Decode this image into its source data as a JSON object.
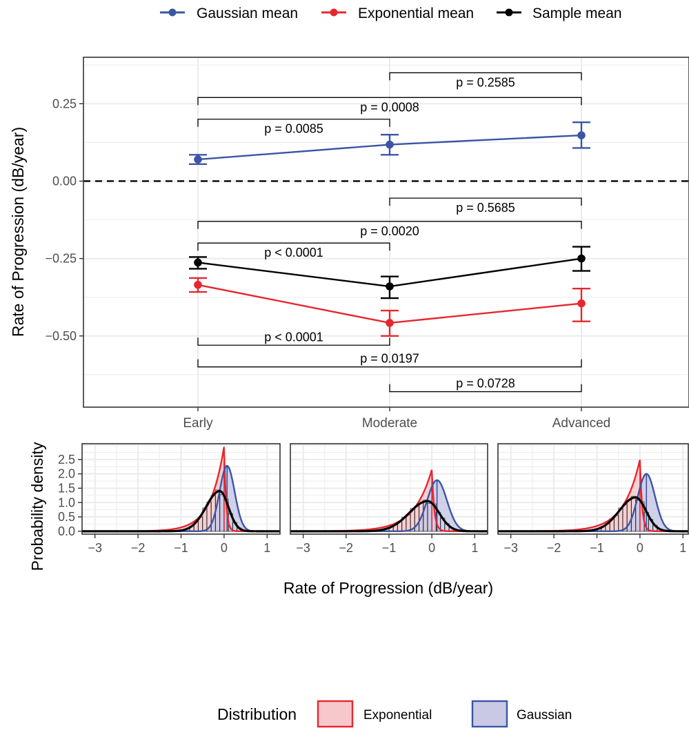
{
  "colors": {
    "gaussian": "#3B55A4",
    "exponential": "#E8262D",
    "sample": "#000000",
    "exp_fill": "#F6C8CB",
    "gauss_fill": "#C9C9E6",
    "grid": "#EBEBEB",
    "axis_text": "#4D4D4D"
  },
  "legend_top": {
    "items": [
      {
        "label": "Gaussian mean",
        "color_key": "gaussian"
      },
      {
        "label": "Exponential mean",
        "color_key": "exponential"
      },
      {
        "label": "Sample mean",
        "color_key": "sample"
      }
    ]
  },
  "legend_bottom": {
    "title": "Distribution",
    "items": [
      {
        "label": "Exponential",
        "color_key": "exponential",
        "fill_key": "exp_fill"
      },
      {
        "label": "Gaussian",
        "color_key": "gaussian",
        "fill_key": "gauss_fill"
      }
    ]
  },
  "chart_data": [
    {
      "type": "line",
      "ylabel": "Rate of Progression (dB/year)",
      "categories": [
        "Early",
        "Moderate",
        "Advanced"
      ],
      "ylim": [
        -0.73,
        0.4
      ],
      "yticks": [
        0.25,
        0.0,
        -0.25,
        -0.5
      ],
      "ytick_labels": [
        "0.25",
        "0.00",
        "−0.25",
        "−0.50"
      ],
      "reference_line": 0.0,
      "grid": true,
      "series": [
        {
          "name": "Gaussian mean",
          "color_key": "gaussian",
          "values": [
            0.07,
            0.118,
            0.148
          ],
          "lower": [
            0.055,
            0.085,
            0.107
          ],
          "upper": [
            0.085,
            0.15,
            0.19
          ]
        },
        {
          "name": "Exponential mean",
          "color_key": "exponential",
          "values": [
            -0.335,
            -0.458,
            -0.395
          ],
          "lower": [
            -0.358,
            -0.5,
            -0.453
          ],
          "upper": [
            -0.313,
            -0.418,
            -0.347
          ]
        },
        {
          "name": "Sample mean",
          "color_key": "sample",
          "values": [
            -0.263,
            -0.34,
            -0.25
          ],
          "lower": [
            -0.283,
            -0.378,
            -0.29
          ],
          "upper": [
            -0.245,
            -0.308,
            -0.212
          ]
        }
      ],
      "annotations": [
        {
          "text": "p = 0.2585",
          "from": 1,
          "to": 2,
          "y": 0.35,
          "ticks": "down",
          "label_side": "below"
        },
        {
          "text": "p = 0.0008",
          "from": 0,
          "to": 2,
          "y": 0.27,
          "ticks": "down",
          "label_side": "below"
        },
        {
          "text": "p = 0.0085",
          "from": 0,
          "to": 1,
          "y": 0.2,
          "ticks": "down",
          "label_side": "below"
        },
        {
          "text": "p = 0.5685",
          "from": 1,
          "to": 2,
          "y": -0.055,
          "ticks": "down",
          "label_side": "below"
        },
        {
          "text": "p = 0.0020",
          "from": 0,
          "to": 2,
          "y": -0.13,
          "ticks": "down",
          "label_side": "below"
        },
        {
          "text": "p < 0.0001",
          "from": 0,
          "to": 1,
          "y": -0.2,
          "ticks": "down",
          "label_side": "below"
        },
        {
          "text": "p < 0.0001",
          "from": 0,
          "to": 1,
          "y": -0.53,
          "ticks": "up",
          "label_side": "above"
        },
        {
          "text": "p = 0.0197",
          "from": 0,
          "to": 2,
          "y": -0.6,
          "ticks": "up",
          "label_side": "above"
        },
        {
          "text": "p = 0.0728",
          "from": 1,
          "to": 2,
          "y": -0.68,
          "ticks": "up",
          "label_side": "above"
        }
      ]
    },
    {
      "type": "histogram_density",
      "xlabel": "Rate of Progression (dB/year)",
      "ylabel": "Probability density",
      "xlim": [
        -3.3,
        1.3
      ],
      "ylim": [
        -0.1,
        3.05
      ],
      "xticks": [
        -3,
        -2,
        -1,
        0,
        1
      ],
      "xtick_labels": [
        "−3",
        "−2",
        "−1",
        "0",
        "1"
      ],
      "yticks": [
        0.0,
        0.5,
        1.0,
        1.5,
        2.0,
        2.5
      ],
      "ytick_labels": [
        "0.0",
        "0.5",
        "1.0",
        "1.5",
        "2.0",
        "2.5"
      ],
      "grid": true,
      "panels": [
        {
          "exp_peak": 2.95,
          "exp_rate_left": 3.1,
          "exp_rate_right": 22,
          "gauss_peak": 2.28,
          "gauss_mean": 0.07,
          "gauss_sd": 0.175,
          "sample_peak": 1.4,
          "sample_mode": -0.1,
          "sample_sd_left": 0.32,
          "sample_sd_right": 0.2
        },
        {
          "exp_peak": 2.15,
          "exp_rate_left": 2.4,
          "exp_rate_right": 18,
          "gauss_peak": 1.78,
          "gauss_mean": 0.12,
          "gauss_sd": 0.23,
          "sample_peak": 1.05,
          "sample_mode": -0.1,
          "sample_sd_left": 0.43,
          "sample_sd_right": 0.27
        },
        {
          "exp_peak": 2.5,
          "exp_rate_left": 2.6,
          "exp_rate_right": 20,
          "gauss_peak": 2.0,
          "gauss_mean": 0.15,
          "gauss_sd": 0.2,
          "sample_peak": 1.18,
          "sample_mode": -0.1,
          "sample_sd_left": 0.38,
          "sample_sd_right": 0.24
        }
      ]
    }
  ]
}
